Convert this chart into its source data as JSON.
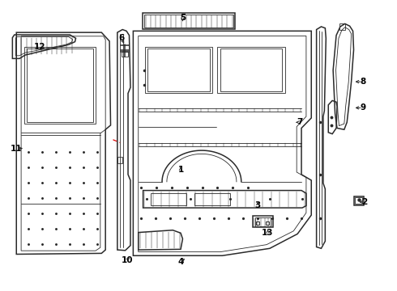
{
  "bg_color": "#ffffff",
  "line_color": "#2a2a2a",
  "red_dashed_color": "#dd0000",
  "label_color": "#000000",
  "figsize": [
    4.9,
    3.6
  ],
  "dpi": 100,
  "label_positions": {
    "1": [
      0.455,
      0.415,
      0.455,
      0.435
    ],
    "2": [
      0.92,
      0.305,
      0.9,
      0.305
    ],
    "3": [
      0.65,
      0.295,
      0.65,
      0.315
    ],
    "4": [
      0.455,
      0.098,
      0.47,
      0.115
    ],
    "5": [
      0.46,
      0.94,
      0.46,
      0.928
    ],
    "6": [
      0.305,
      0.87,
      0.315,
      0.845
    ],
    "7": [
      0.755,
      0.58,
      0.74,
      0.58
    ],
    "8": [
      0.915,
      0.72,
      0.89,
      0.72
    ],
    "9": [
      0.915,
      0.63,
      0.89,
      0.63
    ],
    "10": [
      0.32,
      0.105,
      0.33,
      0.12
    ],
    "11": [
      0.04,
      0.49,
      0.062,
      0.49
    ],
    "12": [
      0.1,
      0.84,
      0.118,
      0.828
    ],
    "13": [
      0.675,
      0.2,
      0.675,
      0.218
    ]
  }
}
